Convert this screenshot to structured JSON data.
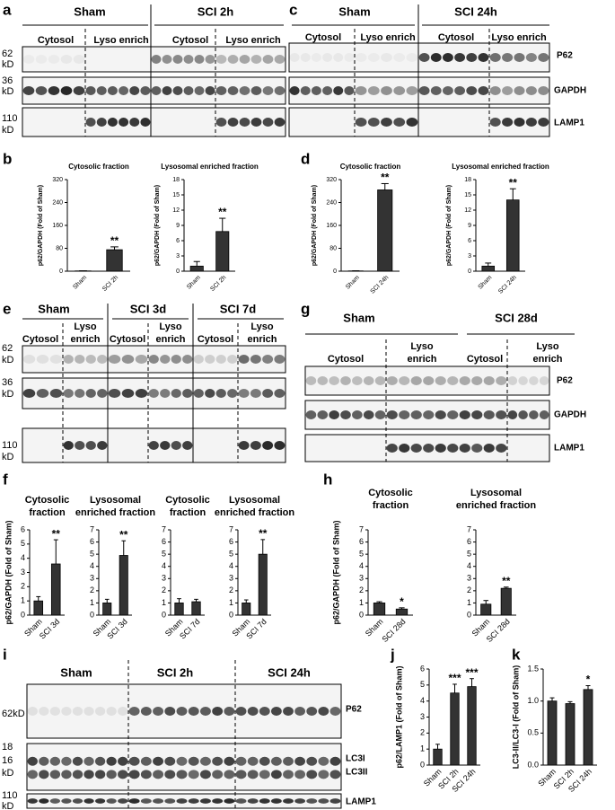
{
  "panel_labels": [
    "a",
    "b",
    "c",
    "d",
    "e",
    "f",
    "g",
    "h",
    "i",
    "j",
    "k"
  ],
  "blots": [
    {
      "groups": [
        "Sham",
        "SCI 2h"
      ],
      "fractions": [
        "Cytosol",
        "Lyso enrich",
        "Cytosol",
        "Lyso enrich"
      ],
      "markers": [
        "62",
        "kD",
        "36",
        "kD",
        "110",
        "kD"
      ]
    },
    {
      "groups": [
        "Sham",
        "SCI 24h"
      ],
      "fractions": [
        "Cytosol",
        "Lyso enrich",
        "Cytosol",
        "Lyso enrich"
      ],
      "proteins": [
        "P62",
        "GAPDH",
        "LAMP1"
      ]
    },
    {
      "groups": [
        "Sham",
        "SCI 3d",
        "SCI 7d"
      ],
      "fractions": [
        "Cytosol",
        "Lyso enrich",
        "Cytosol",
        "Lyso enrich",
        "Cytosol",
        "Lyso enrich"
      ],
      "markers": [
        "62",
        "kD",
        "36",
        "kD",
        "110",
        "kD"
      ]
    },
    {
      "groups": [
        "Sham",
        "SCI 28d"
      ],
      "fractions": [
        "Cytosol",
        "Lyso enrich",
        "Cytosol",
        "Lyso enrich"
      ],
      "proteins": [
        "P62",
        "GAPDH",
        "LAMP1"
      ]
    },
    {
      "groups": [
        "Sham",
        "SCI 2h",
        "SCI 24h"
      ],
      "markers": [
        "62kD",
        "18",
        "16",
        "kD",
        "110",
        "kD"
      ],
      "proteins": [
        "P62",
        "LC3I",
        "LC3II",
        "LAMP1"
      ]
    }
  ],
  "chart_data": [
    {
      "type": "bar",
      "title": "Cytosolic fraction",
      "ylabel": "p62/GAPDH (Fold of Sham)",
      "categories": [
        "Sham",
        "SCI 2h"
      ],
      "values": [
        1,
        75
      ],
      "errors": [
        0.5,
        10
      ],
      "significance": [
        null,
        "**"
      ],
      "ylim": [
        0,
        320
      ],
      "yticks": [
        0,
        80,
        160,
        240,
        320
      ],
      "color": "#333333"
    },
    {
      "type": "bar",
      "title": "Lysosomal enriched fraction",
      "ylabel": "p62/GAPDH (Fold of Sham)",
      "categories": [
        "Sham",
        "SCI 2h"
      ],
      "values": [
        1,
        7.8
      ],
      "errors": [
        0.9,
        2.6
      ],
      "significance": [
        null,
        "**"
      ],
      "ylim": [
        0,
        18
      ],
      "yticks": [
        0,
        3,
        6,
        9,
        12,
        15,
        18
      ],
      "color": "#333333"
    },
    {
      "type": "bar",
      "title": "Cytosolic fraction",
      "ylabel": "p62/GAPDH (Fold of Sham)",
      "categories": [
        "Sham",
        "SCI 24h"
      ],
      "values": [
        1,
        284
      ],
      "errors": [
        0.5,
        22
      ],
      "significance": [
        null,
        "**"
      ],
      "ylim": [
        0,
        320
      ],
      "yticks": [
        0,
        80,
        160,
        240,
        320
      ],
      "color": "#333333"
    },
    {
      "type": "bar",
      "title": "Lysosomal enriched fraction",
      "ylabel": "p62/GAPDH (Fold of Sham)",
      "categories": [
        "Sham",
        "SCI 24h"
      ],
      "values": [
        1,
        14
      ],
      "errors": [
        0.6,
        2.2
      ],
      "significance": [
        null,
        "**"
      ],
      "ylim": [
        0,
        18
      ],
      "yticks": [
        0,
        3,
        6,
        9,
        12,
        15,
        18
      ],
      "color": "#333333"
    },
    {
      "type": "bar",
      "title": "Cytosolic fraction",
      "ylabel": "p62/GAPDH (Fold of Sham)",
      "categories": [
        "Sham",
        "SCI 3d"
      ],
      "values": [
        1,
        3.6
      ],
      "errors": [
        0.3,
        1.7
      ],
      "significance": [
        null,
        "**"
      ],
      "ylim": [
        0,
        6
      ],
      "yticks": [
        0,
        1,
        2,
        3,
        4,
        5,
        6
      ],
      "color": "#333333"
    },
    {
      "type": "bar",
      "title": "Lysosomal enriched fraction",
      "categories": [
        "Sham",
        "SCI 3d"
      ],
      "values": [
        1,
        4.9
      ],
      "errors": [
        0.3,
        1.2
      ],
      "significance": [
        null,
        "**"
      ],
      "ylim": [
        0,
        7
      ],
      "yticks": [
        0,
        1,
        2,
        3,
        4,
        5,
        6,
        7
      ],
      "color": "#333333"
    },
    {
      "type": "bar",
      "title": "Cytosolic fraction",
      "categories": [
        "Sham",
        "SCI 7d"
      ],
      "values": [
        1,
        1.1
      ],
      "errors": [
        0.35,
        0.2
      ],
      "significance": [
        null,
        null
      ],
      "ylim": [
        0,
        7
      ],
      "yticks": [
        0,
        1,
        2,
        3,
        4,
        5,
        6,
        7
      ],
      "color": "#333333"
    },
    {
      "type": "bar",
      "title": "Lysosomal enriched fraction",
      "categories": [
        "Sham",
        "SCI 7d"
      ],
      "values": [
        1,
        5.0
      ],
      "errors": [
        0.25,
        1.2
      ],
      "significance": [
        null,
        "**"
      ],
      "ylim": [
        0,
        7
      ],
      "yticks": [
        0,
        1,
        2,
        3,
        4,
        5,
        6,
        7
      ],
      "color": "#333333"
    },
    {
      "type": "bar",
      "title": "Cytosolic fraction",
      "ylabel": "p62/GAPDH (Fold of Sham)",
      "categories": [
        "Sham",
        "SCI 28d"
      ],
      "values": [
        1,
        0.5
      ],
      "errors": [
        0.1,
        0.1
      ],
      "significance": [
        null,
        "*"
      ],
      "ylim": [
        0,
        7
      ],
      "yticks": [
        0,
        1,
        2,
        3,
        4,
        5,
        6,
        7
      ],
      "color": "#333333"
    },
    {
      "type": "bar",
      "title": "Lysosomal enriched fraction",
      "categories": [
        "Sham",
        "SCI 28d"
      ],
      "values": [
        0.9,
        2.2
      ],
      "errors": [
        0.3,
        0.1
      ],
      "significance": [
        null,
        "**"
      ],
      "ylim": [
        0,
        7
      ],
      "yticks": [
        0,
        1,
        2,
        3,
        4,
        5,
        6,
        7
      ],
      "color": "#333333"
    },
    {
      "type": "bar",
      "ylabel": "p62/LAMP1 (Fold of Sham)",
      "categories": [
        "Sham",
        "SCI 2h",
        "SCI 24h"
      ],
      "values": [
        1,
        4.5,
        4.9
      ],
      "errors": [
        0.3,
        0.55,
        0.5
      ],
      "significance": [
        null,
        "***",
        "***"
      ],
      "ylim": [
        0,
        6
      ],
      "yticks": [
        0,
        1,
        2,
        3,
        4,
        5,
        6
      ],
      "color": "#333333"
    },
    {
      "type": "bar",
      "ylabel": "LC3-II/LC3-I (Fold of Sham)",
      "categories": [
        "Sham",
        "SCI 2h",
        "SCI 24h"
      ],
      "values": [
        1.0,
        0.96,
        1.18
      ],
      "errors": [
        0.05,
        0.03,
        0.06
      ],
      "significance": [
        null,
        null,
        "*"
      ],
      "ylim": [
        0,
        1.5
      ],
      "yticks": [
        {
          "value": 0,
          "label": "0.0"
        },
        0.5,
        {
          "value": 1,
          "label": "1.0"
        },
        1.5
      ],
      "color": "#333333"
    }
  ]
}
